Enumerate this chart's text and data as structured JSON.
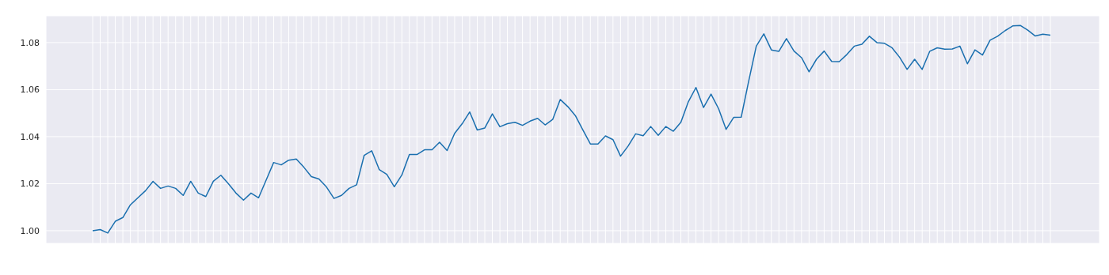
{
  "chart_data": {
    "type": "line",
    "categories": [
      null,
      null,
      null,
      null,
      null,
      null,
      null,
      null,
      null,
      null,
      null,
      null,
      null,
      null,
      null,
      null,
      null,
      null,
      null,
      null,
      null,
      null,
      null,
      null,
      null,
      null,
      null,
      null,
      null,
      null,
      null,
      null,
      null,
      null,
      null,
      null,
      null,
      null,
      null,
      null,
      null,
      null,
      null,
      null,
      null,
      null,
      null,
      null,
      null,
      null,
      null,
      null,
      null,
      null,
      null,
      null,
      null,
      null,
      null,
      null,
      null,
      null,
      null,
      null,
      null,
      null,
      null,
      null,
      null,
      null,
      null,
      null,
      null,
      null,
      null,
      null,
      null,
      null,
      null,
      null,
      null,
      null,
      null,
      null,
      null,
      null,
      null,
      null,
      null,
      null,
      null,
      null,
      null,
      null,
      null,
      null,
      null,
      null,
      null,
      null,
      null,
      null,
      null,
      null,
      null,
      null,
      null,
      null,
      null,
      null,
      null,
      null,
      null,
      null,
      null,
      null,
      null,
      null,
      null,
      null,
      null,
      null,
      null,
      null,
      null,
      null,
      null,
      null
    ],
    "series": [
      {
        "color": "#1a6faf",
        "values": [
          1.0,
          1.0005,
          0.999,
          1.004,
          1.0056,
          1.011,
          1.014,
          1.017,
          1.021,
          1.018,
          1.019,
          1.018,
          1.015,
          1.021,
          1.016,
          1.0145,
          1.021,
          1.0236,
          1.02,
          1.016,
          1.013,
          1.016,
          1.014,
          1.0215,
          1.029,
          1.028,
          1.03,
          1.0305,
          1.027,
          1.023,
          1.022,
          1.0186,
          1.0137,
          1.015,
          1.018,
          1.0195,
          1.032,
          1.034,
          1.026,
          1.024,
          1.0187,
          1.0237,
          1.0324,
          1.0324,
          1.0344,
          1.0344,
          1.0376,
          1.0341,
          1.0414,
          1.0455,
          1.0505,
          1.0428,
          1.0437,
          1.0497,
          1.0442,
          1.0455,
          1.0461,
          1.0448,
          1.0466,
          1.0478,
          1.045,
          1.0473,
          1.0558,
          1.0528,
          1.049,
          1.0429,
          1.0369,
          1.0369,
          1.0403,
          1.0387,
          1.0317,
          1.036,
          1.0412,
          1.0404,
          1.0443,
          1.0406,
          1.0443,
          1.0423,
          1.0461,
          1.0549,
          1.0609,
          1.0524,
          1.0581,
          1.0519,
          1.0431,
          1.0482,
          1.0483,
          1.0637,
          1.0785,
          1.0837,
          1.0769,
          1.0763,
          1.0817,
          1.0764,
          1.0736,
          1.0676,
          1.073,
          1.0764,
          1.072,
          1.0719,
          1.0749,
          1.0785,
          1.0793,
          1.0827,
          1.08,
          1.0797,
          1.0778,
          1.0738,
          1.0686,
          1.0729,
          1.0686,
          1.0763,
          1.0778,
          1.0772,
          1.0773,
          1.0785,
          1.071,
          1.0769,
          1.0747,
          1.081,
          1.0827,
          1.0851,
          1.0871,
          1.0873,
          1.0853,
          1.0828,
          1.0836,
          1.0832
        ]
      }
    ],
    "ylim": [
      0.9946,
      1.0914
    ],
    "yticks": [
      {
        "value": 1.0,
        "label": "1.00"
      },
      {
        "value": 1.02,
        "label": "1.02"
      },
      {
        "value": 1.04,
        "label": "1.04"
      },
      {
        "value": 1.06,
        "label": "1.06"
      },
      {
        "value": 1.08,
        "label": "1.08"
      }
    ],
    "grid": true,
    "legend": false,
    "marker": "none",
    "line_style": "solid"
  }
}
